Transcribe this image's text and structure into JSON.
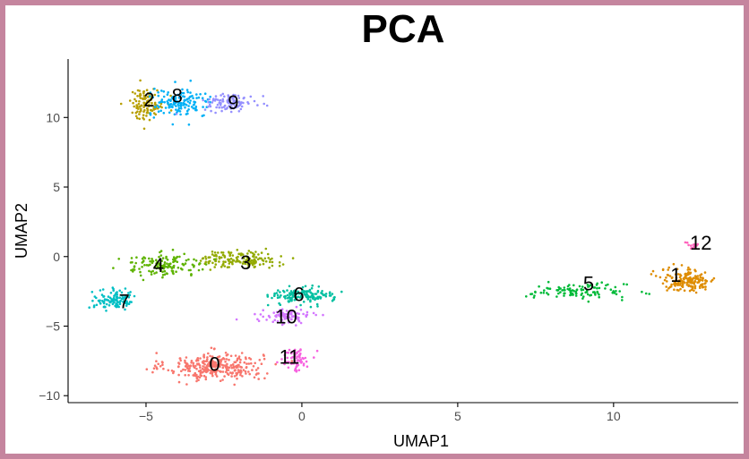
{
  "chart_data": {
    "type": "scatter",
    "title": "PCA",
    "xlabel": "UMAP1",
    "ylabel": "UMAP2",
    "xlim": [
      -7.5,
      14.0
    ],
    "ylim": [
      -10.5,
      14.2
    ],
    "xticks": [
      -5,
      0,
      5,
      10
    ],
    "yticks": [
      -10,
      -5,
      0,
      5,
      10
    ],
    "xtick_labels": [
      "−5",
      "0",
      "5",
      "10"
    ],
    "ytick_labels": [
      "−10",
      "−5",
      "0",
      "5",
      "10"
    ],
    "grid": false,
    "legend": "none",
    "clusters": [
      {
        "label": "0",
        "color": "#F8766D",
        "center": [
          -2.8,
          -7.9
        ],
        "spread": [
          1.4,
          0.9
        ],
        "n": 320,
        "label_pos": [
          -2.8,
          -7.7
        ]
      },
      {
        "label": "1",
        "color": "#DE8C00",
        "center": [
          12.4,
          -1.7
        ],
        "spread": [
          0.8,
          0.75
        ],
        "n": 170,
        "label_pos": [
          12.0,
          -1.3
        ]
      },
      {
        "label": "2",
        "color": "#B79F00",
        "center": [
          -5.0,
          11.0
        ],
        "spread": [
          0.5,
          1.0
        ],
        "n": 120,
        "label_pos": [
          -4.9,
          11.3
        ]
      },
      {
        "label": "3",
        "color": "#93AA00",
        "center": [
          -2.0,
          -0.2
        ],
        "spread": [
          1.1,
          0.55
        ],
        "n": 150,
        "label_pos": [
          -1.8,
          -0.4
        ]
      },
      {
        "label": "4",
        "color": "#5EB300",
        "center": [
          -4.4,
          -0.6
        ],
        "spread": [
          1.3,
          0.7
        ],
        "n": 140,
        "label_pos": [
          -4.6,
          -0.6
        ]
      },
      {
        "label": "5",
        "color": "#00BA38",
        "center": [
          8.9,
          -2.5
        ],
        "spread": [
          1.4,
          0.5
        ],
        "n": 110,
        "label_pos": [
          9.2,
          -1.9
        ]
      },
      {
        "label": "6",
        "color": "#00BFA0",
        "center": [
          0.0,
          -2.8
        ],
        "spread": [
          0.9,
          0.55
        ],
        "n": 140,
        "label_pos": [
          -0.1,
          -2.7
        ]
      },
      {
        "label": "7",
        "color": "#00BFC4",
        "center": [
          -6.0,
          -3.1
        ],
        "spread": [
          0.6,
          0.6
        ],
        "n": 110,
        "label_pos": [
          -5.7,
          -3.2
        ]
      },
      {
        "label": "8",
        "color": "#00B0F6",
        "center": [
          -3.9,
          11.0
        ],
        "spread": [
          0.9,
          0.9
        ],
        "n": 140,
        "label_pos": [
          -4.0,
          11.6
        ]
      },
      {
        "label": "9",
        "color": "#9590FF",
        "center": [
          -2.3,
          11.1
        ],
        "spread": [
          0.8,
          0.55
        ],
        "n": 100,
        "label_pos": [
          -2.2,
          11.1
        ]
      },
      {
        "label": "10",
        "color": "#D376FF",
        "center": [
          -0.5,
          -4.3
        ],
        "spread": [
          0.7,
          0.45
        ],
        "n": 90,
        "label_pos": [
          -0.5,
          -4.3
        ]
      },
      {
        "label": "11",
        "color": "#F763E0",
        "center": [
          -0.2,
          -7.4
        ],
        "spread": [
          0.4,
          0.8
        ],
        "n": 70,
        "label_pos": [
          -0.4,
          -7.2
        ]
      },
      {
        "label": "12",
        "color": "#FF62BC",
        "center": [
          12.6,
          0.8
        ],
        "spread": [
          0.2,
          0.25
        ],
        "n": 14,
        "label_pos": [
          12.8,
          1.0
        ]
      }
    ]
  }
}
